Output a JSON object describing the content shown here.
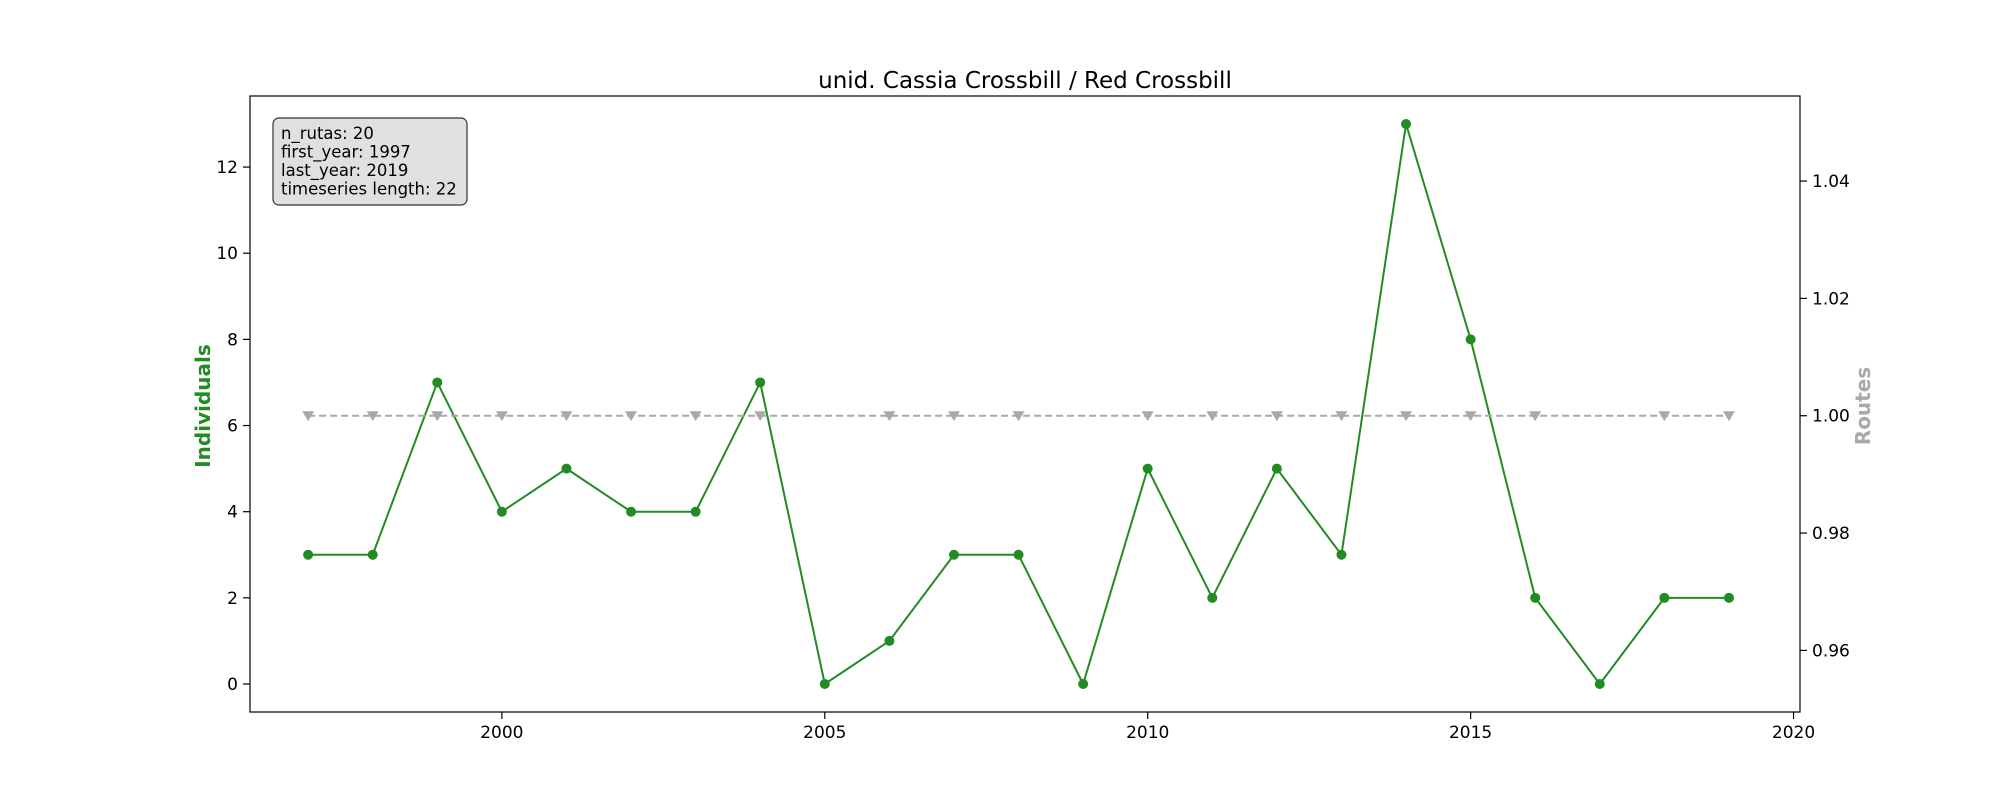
{
  "chart_data": {
    "type": "line",
    "title": "unid. Cassia Crossbill / Red Crossbill",
    "xlabel": "",
    "ylabel": "Individuals",
    "y2label": "Routes",
    "xlim": [
      1996.1,
      2020.1
    ],
    "ylim": [
      -0.65,
      13.65
    ],
    "y2lim": [
      0.9495,
      1.0545
    ],
    "x_ticks": [
      2000,
      2005,
      2010,
      2015,
      2020
    ],
    "y_ticks": [
      0,
      2,
      4,
      6,
      8,
      10,
      12
    ],
    "y2_ticks": [
      "0.96",
      "0.98",
      "1.00",
      "1.02",
      "1.04"
    ],
    "grid": false,
    "series": [
      {
        "axis": "left",
        "color": "#228B22",
        "marker": "circle",
        "linestyle": "solid",
        "x": [
          1997,
          1998,
          1999,
          2000,
          2001,
          2002,
          2003,
          2004,
          2005,
          2006,
          2007,
          2008,
          2009,
          2010,
          2011,
          2012,
          2013,
          2014,
          2015,
          2016,
          2017,
          2018,
          2019
        ],
        "y": [
          3,
          3,
          7,
          4,
          5,
          4,
          4,
          7,
          0,
          1,
          3,
          3,
          0,
          5,
          2,
          5,
          3,
          13,
          8,
          2,
          0,
          2,
          2
        ]
      },
      {
        "axis": "right",
        "color": "#A9A9A9",
        "marker": "triangle-down",
        "linestyle": "dashed",
        "x": [
          1997,
          1998,
          1999,
          2000,
          2001,
          2002,
          2003,
          2004,
          2006,
          2007,
          2008,
          2010,
          2011,
          2012,
          2013,
          2014,
          2015,
          2016,
          2018,
          2019
        ],
        "y": [
          1,
          1,
          1,
          1,
          1,
          1,
          1,
          1,
          1,
          1,
          1,
          1,
          1,
          1,
          1,
          1,
          1,
          1,
          1,
          1
        ]
      }
    ],
    "annotation_lines": [
      "n_rutas: 20",
      "first_year: 1997",
      "last_year: 2019",
      "timeseries length: 22"
    ],
    "annotation_position": "top-left",
    "ylabel_color": "#228B22",
    "y2label_color": "#A9A9A9"
  }
}
